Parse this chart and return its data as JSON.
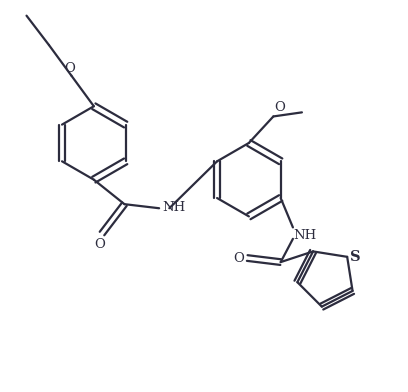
{
  "bg_color": "#ffffff",
  "line_color": "#2c2c3e",
  "line_width": 1.6,
  "font_size": 9.5,
  "figsize": [
    4.08,
    3.92
  ],
  "dpi": 100,
  "xlim": [
    0,
    10
  ],
  "ylim": [
    0,
    9.6
  ]
}
